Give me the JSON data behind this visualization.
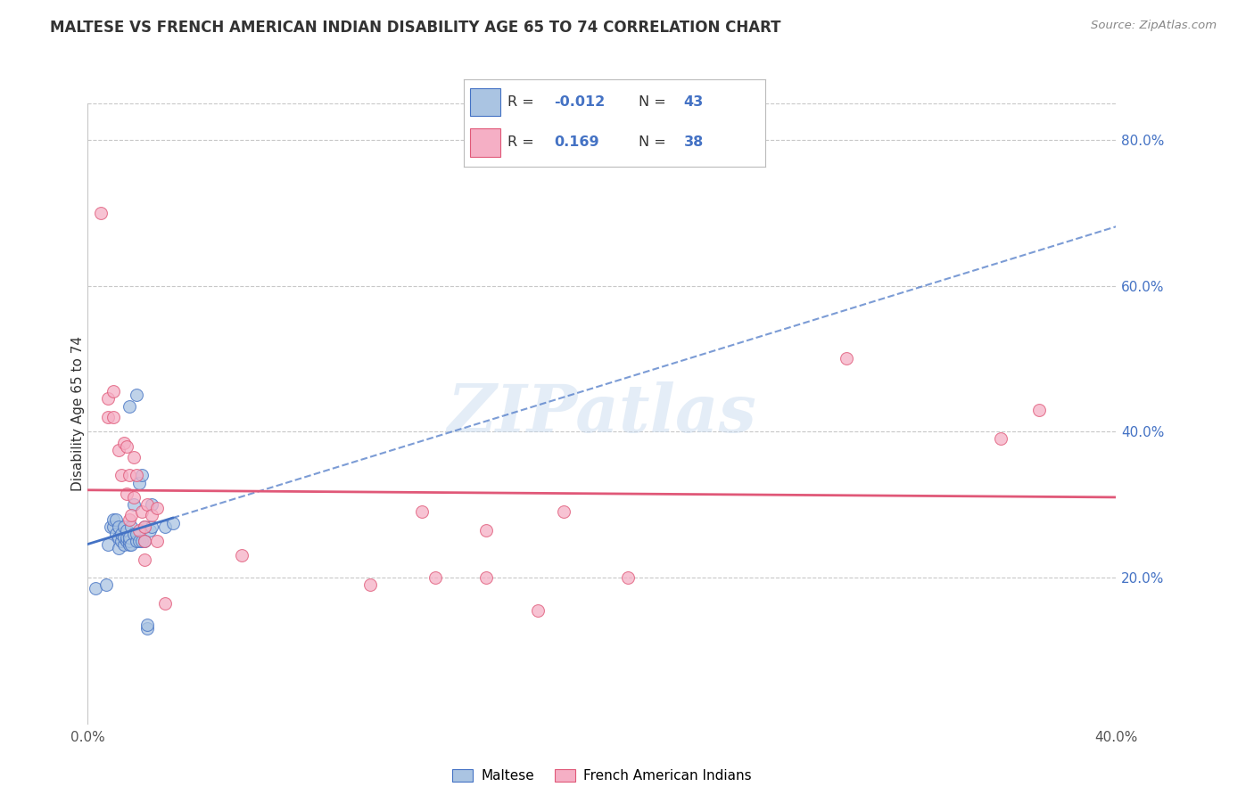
{
  "title": "MALTESE VS FRENCH AMERICAN INDIAN DISABILITY AGE 65 TO 74 CORRELATION CHART",
  "source": "Source: ZipAtlas.com",
  "ylabel": "Disability Age 65 to 74",
  "xlim": [
    0.0,
    0.4
  ],
  "ylim": [
    0.0,
    0.85
  ],
  "watermark": "ZIPatlas",
  "legend_R_maltese": "-0.012",
  "legend_N_maltese": "43",
  "legend_R_french": "0.169",
  "legend_N_french": "38",
  "maltese_color": "#aac4e2",
  "french_color": "#f5afc5",
  "maltese_line_color": "#4472c4",
  "french_line_color": "#e05878",
  "background_color": "#ffffff",
  "maltese_points_x": [
    0.003,
    0.007,
    0.008,
    0.009,
    0.01,
    0.01,
    0.011,
    0.011,
    0.012,
    0.012,
    0.012,
    0.013,
    0.013,
    0.014,
    0.014,
    0.014,
    0.015,
    0.015,
    0.015,
    0.016,
    0.016,
    0.016,
    0.016,
    0.017,
    0.017,
    0.018,
    0.018,
    0.019,
    0.019,
    0.019,
    0.02,
    0.02,
    0.021,
    0.021,
    0.022,
    0.022,
    0.023,
    0.023,
    0.024,
    0.025,
    0.025,
    0.03,
    0.033
  ],
  "maltese_points_y": [
    0.185,
    0.19,
    0.245,
    0.27,
    0.27,
    0.28,
    0.26,
    0.28,
    0.24,
    0.255,
    0.27,
    0.25,
    0.26,
    0.245,
    0.255,
    0.27,
    0.25,
    0.255,
    0.265,
    0.245,
    0.25,
    0.255,
    0.435,
    0.245,
    0.27,
    0.26,
    0.3,
    0.25,
    0.26,
    0.45,
    0.25,
    0.33,
    0.25,
    0.34,
    0.25,
    0.27,
    0.13,
    0.135,
    0.265,
    0.27,
    0.3,
    0.27,
    0.275
  ],
  "french_points_x": [
    0.005,
    0.008,
    0.008,
    0.01,
    0.01,
    0.012,
    0.013,
    0.014,
    0.015,
    0.015,
    0.016,
    0.016,
    0.017,
    0.018,
    0.018,
    0.019,
    0.02,
    0.021,
    0.022,
    0.022,
    0.022,
    0.023,
    0.025,
    0.027,
    0.027,
    0.03,
    0.06,
    0.11,
    0.13,
    0.135,
    0.155,
    0.155,
    0.175,
    0.185,
    0.21,
    0.295,
    0.355,
    0.37
  ],
  "french_points_y": [
    0.7,
    0.42,
    0.445,
    0.42,
    0.455,
    0.375,
    0.34,
    0.385,
    0.315,
    0.38,
    0.28,
    0.34,
    0.285,
    0.365,
    0.31,
    0.34,
    0.265,
    0.29,
    0.225,
    0.25,
    0.27,
    0.3,
    0.285,
    0.25,
    0.295,
    0.165,
    0.23,
    0.19,
    0.29,
    0.2,
    0.2,
    0.265,
    0.155,
    0.29,
    0.2,
    0.5,
    0.39,
    0.43
  ]
}
